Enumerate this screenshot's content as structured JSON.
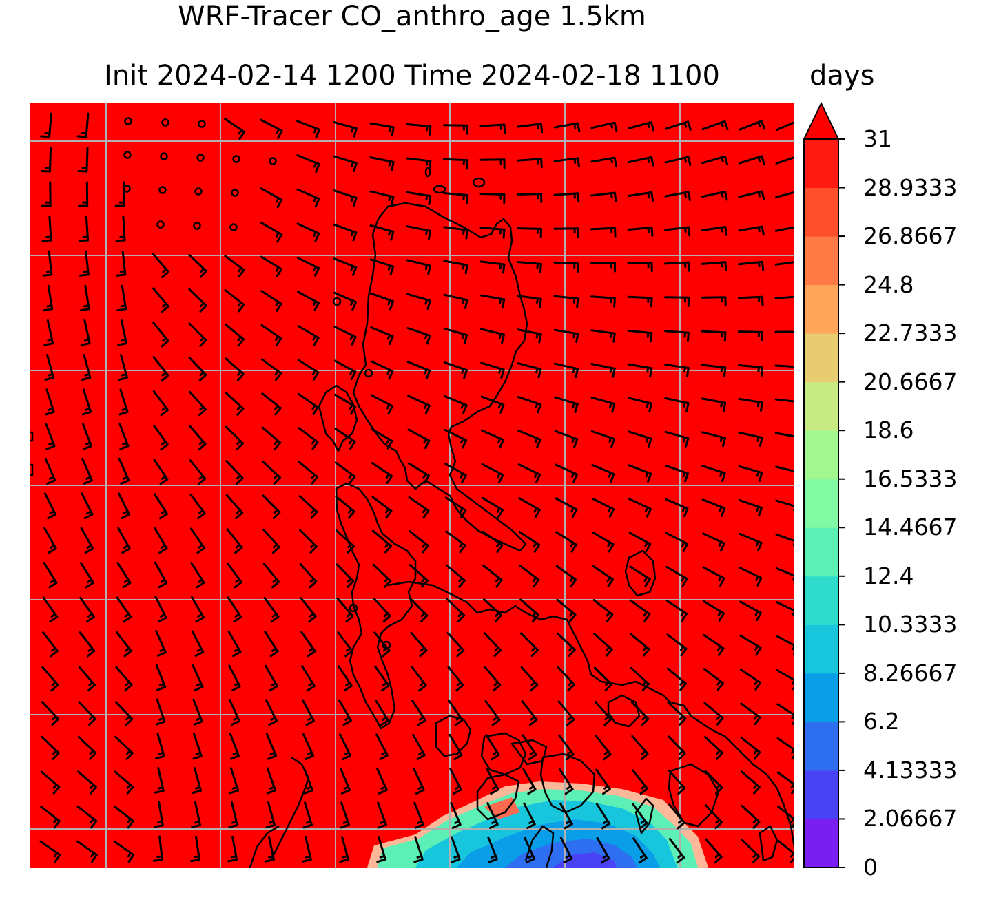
{
  "title": {
    "line1": "WRF-Tracer CO_anthro_age 1.5km",
    "line2": "Init 2024-02-14 1200 Time 2024-02-18 1100"
  },
  "colorbar": {
    "units": "days",
    "ticks": [
      "0",
      "2.06667",
      "4.13333",
      "6.2",
      "8.26667",
      "10.3333",
      "12.4",
      "14.4667",
      "16.5333",
      "18.6",
      "20.6667",
      "22.7333",
      "24.8",
      "26.8667",
      "28.9333",
      "31"
    ],
    "range": [
      0,
      31
    ],
    "extend": "max",
    "levels_colors": [
      "#7a1ff2",
      "#4a43f5",
      "#2e6ff2",
      "#0a9ee8",
      "#17c6dd",
      "#2fdccb",
      "#5cf0b6",
      "#80faa3",
      "#a2f88e",
      "#c7ea82",
      "#e8cc72",
      "#ffa65a",
      "#ff7a44",
      "#ff4f2c",
      "#ff1a12"
    ],
    "extend_color": "#ff0000"
  },
  "map": {
    "field_color": "#ff0000",
    "coastline_color": "#000000",
    "gridline_color": "#b0b0b0",
    "barb_color": "#000000",
    "calm_marker": "circle"
  }
}
